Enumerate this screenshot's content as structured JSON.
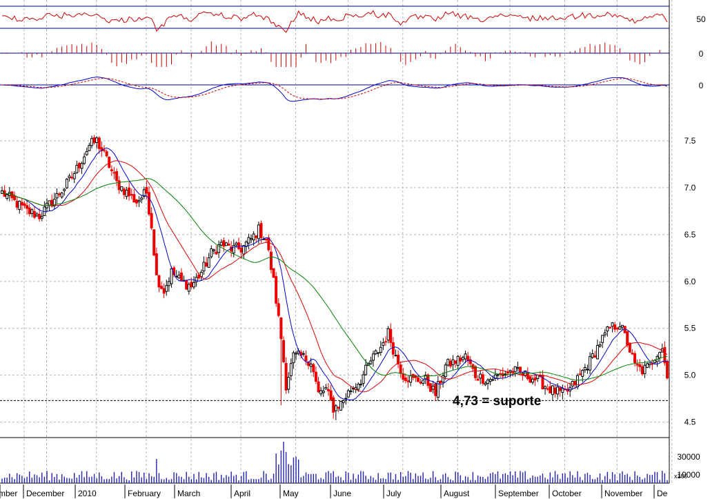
{
  "chart_data": {
    "type": "candlestick",
    "title": "",
    "annotation": "4,73 = suporte",
    "support_level": 4.73,
    "x_axis": {
      "month_labels": [
        "mber",
        "December",
        "2010",
        "February",
        "March",
        "April",
        "May",
        "June",
        "July",
        "August",
        "September",
        "October",
        "November",
        "De"
      ]
    },
    "price_panel": {
      "ylim": [
        4.35,
        7.75
      ],
      "yticks": [
        4.5,
        5.0,
        5.5,
        6.0,
        6.5,
        7.0,
        7.5
      ],
      "ytick_labels": [
        "4.5",
        "5.0",
        "5.5",
        "6.0",
        "6.5",
        "7.0",
        "7.5"
      ],
      "close_anchors": [
        [
          0,
          6.95
        ],
        [
          5,
          6.85
        ],
        [
          10,
          6.75
        ],
        [
          15,
          6.7
        ],
        [
          20,
          6.85
        ],
        [
          25,
          7.0
        ],
        [
          30,
          7.2
        ],
        [
          35,
          7.45
        ],
        [
          38,
          7.5
        ],
        [
          42,
          7.3
        ],
        [
          46,
          7.05
        ],
        [
          50,
          6.95
        ],
        [
          54,
          6.85
        ],
        [
          58,
          6.95
        ],
        [
          60,
          6.6
        ],
        [
          62,
          6.05
        ],
        [
          65,
          5.9
        ],
        [
          68,
          6.1
        ],
        [
          72,
          6.0
        ],
        [
          76,
          5.95
        ],
        [
          80,
          6.1
        ],
        [
          84,
          6.3
        ],
        [
          88,
          6.4
        ],
        [
          92,
          6.35
        ],
        [
          96,
          6.35
        ],
        [
          100,
          6.45
        ],
        [
          103,
          6.55
        ],
        [
          106,
          6.45
        ],
        [
          109,
          6.0
        ],
        [
          112,
          5.4
        ],
        [
          114,
          4.9
        ],
        [
          117,
          5.2
        ],
        [
          120,
          5.2
        ],
        [
          124,
          5.15
        ],
        [
          127,
          4.8
        ],
        [
          130,
          4.85
        ],
        [
          133,
          4.65
        ],
        [
          136,
          4.7
        ],
        [
          140,
          4.85
        ],
        [
          144,
          4.95
        ],
        [
          148,
          5.15
        ],
        [
          152,
          5.3
        ],
        [
          155,
          5.45
        ],
        [
          158,
          5.2
        ],
        [
          161,
          5.0
        ],
        [
          165,
          4.95
        ],
        [
          170,
          4.95
        ],
        [
          174,
          4.8
        ],
        [
          178,
          5.1
        ],
        [
          182,
          5.15
        ],
        [
          186,
          5.2
        ],
        [
          190,
          5.0
        ],
        [
          195,
          4.95
        ],
        [
          200,
          5.0
        ],
        [
          205,
          5.05
        ],
        [
          210,
          5.0
        ],
        [
          215,
          4.95
        ],
        [
          220,
          4.85
        ],
        [
          225,
          4.8
        ],
        [
          228,
          4.85
        ],
        [
          232,
          5.0
        ],
        [
          236,
          5.15
        ],
        [
          240,
          5.35
        ],
        [
          244,
          5.5
        ],
        [
          248,
          5.55
        ],
        [
          251,
          5.35
        ],
        [
          254,
          5.1
        ],
        [
          257,
          5.05
        ],
        [
          260,
          5.1
        ],
        [
          263,
          5.25
        ],
        [
          265,
          5.3
        ],
        [
          267,
          4.97
        ]
      ],
      "lows": {
        "pre_crash_dip": 4.68,
        "may_low": 4.52,
        "support": 4.73
      }
    },
    "volume_panel": {
      "yticks": [
        10000,
        30000
      ],
      "ytick_labels": [
        "10000",
        "30000"
      ],
      "multiplier_label": "x100"
    },
    "indicator_panels": [
      {
        "name": "",
        "ytick": 50,
        "ytick_label": "50"
      },
      {
        "name": "",
        "ytick": 0,
        "ytick_label": "0"
      },
      {
        "name": "",
        "ytick": 0,
        "ytick_label": "0"
      }
    ],
    "moving_averages": [
      {
        "color": "#0000cc"
      },
      {
        "color": "#dd0000"
      },
      {
        "color": "#008000"
      }
    ],
    "colors": {
      "up_candle": "#000000",
      "down_candle": "#ee0000",
      "volume": "#2222aa",
      "grid": "#b5b5b5"
    },
    "grid": true
  }
}
